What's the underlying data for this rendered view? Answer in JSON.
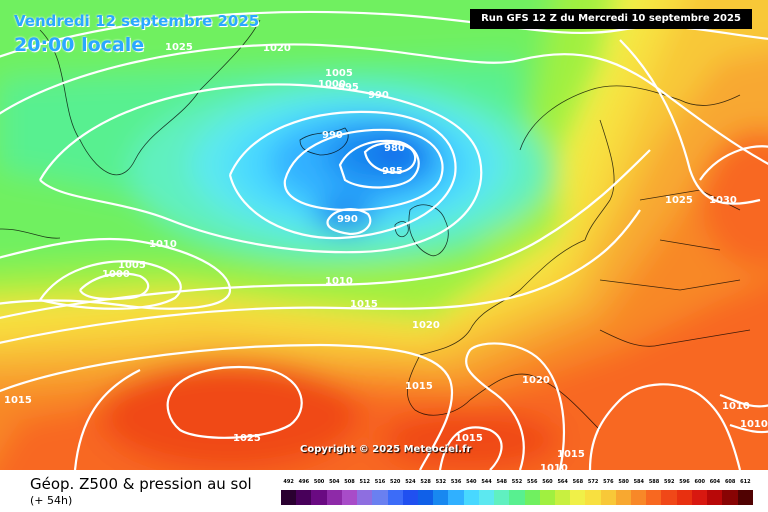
{
  "header": {
    "date": "Vendredi 12 septembre 2025",
    "local_time": "20:00 locale",
    "run": "Run GFS 12 Z du Mercredi 10 septembre 2025"
  },
  "copyright": "Copyright © 2025 Meteociel.fr",
  "footer": {
    "title": "Géop. Z500 & pression au sol",
    "lead": "(+ 54h)"
  },
  "legend": {
    "values": [
      "492",
      "496",
      "500",
      "504",
      "508",
      "512",
      "516",
      "520",
      "524",
      "528",
      "532",
      "536",
      "540",
      "544",
      "548",
      "552",
      "556",
      "560",
      "564",
      "568",
      "572",
      "576",
      "580",
      "584",
      "588",
      "592",
      "596",
      "600",
      "604",
      "608",
      "612"
    ],
    "colors": [
      "#2a0030",
      "#48005a",
      "#6a0a82",
      "#8e2aa8",
      "#a84cc8",
      "#8e6ee0",
      "#6a80f0",
      "#3c6cf8",
      "#2050f0",
      "#1060e8",
      "#1888f0",
      "#30b0ff",
      "#48d8ff",
      "#5ce8f0",
      "#60f0c0",
      "#58f090",
      "#70f060",
      "#a0f040",
      "#c8f040",
      "#f0f048",
      "#f8e040",
      "#f8c838",
      "#f8a830",
      "#f88828",
      "#f86820",
      "#f04818",
      "#e83010",
      "#d81810",
      "#b80808",
      "#880404",
      "#500202"
    ]
  },
  "isobar_labels": [
    "1025",
    "1020",
    "1005",
    "1000",
    "995",
    "990",
    "990",
    "980",
    "985",
    "990",
    "1010",
    "1005",
    "1000",
    "1010",
    "1015",
    "1020",
    "1025",
    "1030",
    "1015",
    "1020",
    "1015",
    "1015",
    "1025",
    "1015",
    "1010",
    "1010",
    "1010"
  ]
}
